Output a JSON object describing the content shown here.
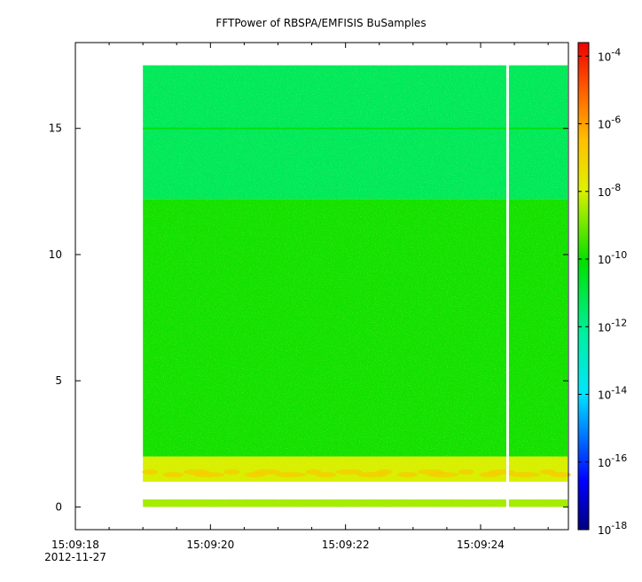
{
  "chart_data": {
    "type": "heatmap",
    "title": "FFTPower of RBSPA/EMFISIS  BuSamples",
    "xlabel": "",
    "ylabel": "",
    "x_ticks": [
      "15:09:18",
      "15:09:20",
      "15:09:22",
      "15:09:24"
    ],
    "x_tick_seconds": [
      18,
      20,
      22,
      24
    ],
    "x_date_label": "2012-11-27",
    "xlim_seconds": [
      18.0,
      25.3
    ],
    "data_start_seconds": 19.0,
    "gap_seconds": 24.4,
    "y_ticks": [
      0,
      5,
      10,
      15
    ],
    "ylim": [
      -0.9,
      18.4
    ],
    "data_ymax": 17.5,
    "colorbar": {
      "scale": "log",
      "range_exponent": [
        -18,
        -3.6
      ],
      "tick_exponents": [
        -18,
        -16,
        -14,
        -12,
        -10,
        -8,
        -6,
        -4
      ],
      "tick_labels": [
        "10",
        "10",
        "10",
        "10",
        "10",
        "10",
        "10",
        "10"
      ],
      "tick_superscripts": [
        "-18",
        "-16",
        "-14",
        "-12",
        "-10",
        "-8",
        "-6",
        "-4"
      ]
    },
    "bands": [
      {
        "y_range": [
          12.2,
          17.5
        ],
        "log_power": -11.3
      },
      {
        "y_range": [
          2.0,
          12.2
        ],
        "log_power": -9.9
      },
      {
        "y_range": [
          1.0,
          2.0
        ],
        "log_power": -8.0
      },
      {
        "y_range": [
          0.0,
          0.3
        ],
        "log_power": -8.5
      }
    ],
    "lines": [
      {
        "y": 15.0,
        "log_power": -10.3
      }
    ],
    "enhanced_band": {
      "y": 1.35,
      "log_power_peak": -6.8
    }
  }
}
